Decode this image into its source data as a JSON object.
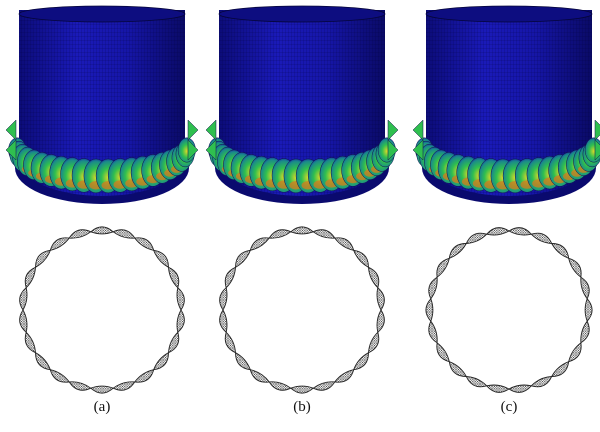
{
  "figure": {
    "panels": [
      {
        "label": "(a)",
        "lobe_count": 22
      },
      {
        "label": "(b)",
        "lobe_count": 22
      },
      {
        "label": "(c)",
        "lobe_count": 22
      }
    ],
    "colors": {
      "shell_blue": "#1414a8",
      "shell_dark_blue": "#0a0a6e",
      "mesh_line": "#000033",
      "bulge_green": "#2fbf4f",
      "bulge_yellow": "#d8d82a",
      "bulge_orange": "#d87a1e",
      "ring_mesh": "#222222"
    }
  }
}
